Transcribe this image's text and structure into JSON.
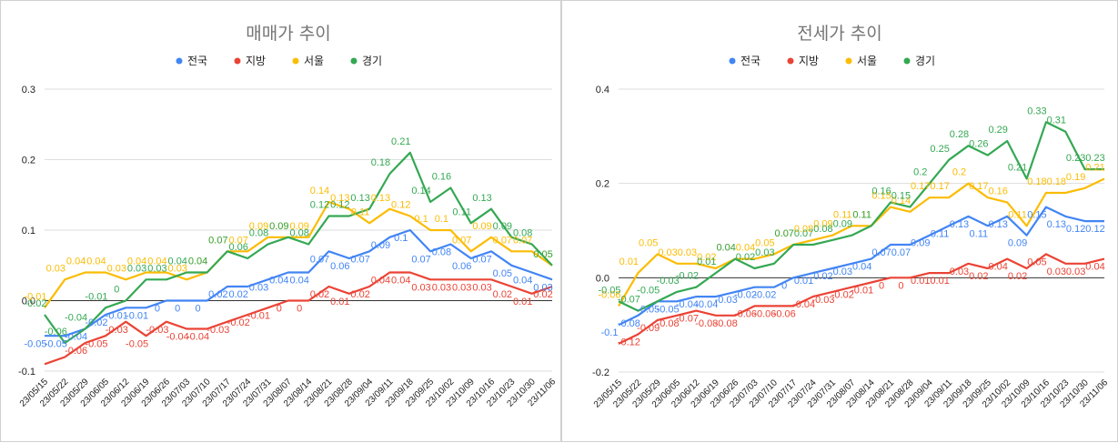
{
  "chart_data": [
    {
      "type": "line",
      "title": "매매가 추이",
      "legend_position": "top",
      "grid": true,
      "ylim": [
        -0.1,
        0.3
      ],
      "yticks": [
        "0.3",
        "0.2",
        "0.1",
        "0.0",
        "-0.1"
      ],
      "ytick_values": [
        0.3,
        0.2,
        0.1,
        0.0,
        -0.1
      ],
      "x": [
        "23/05/15",
        "23/05/22",
        "23/05/29",
        "23/06/05",
        "23/06/12",
        "23/06/19",
        "23/06/26",
        "23/07/03",
        "23/07/10",
        "23/07/17",
        "23/07/24",
        "23/07/31",
        "23/08/07",
        "23/08/14",
        "23/08/21",
        "23/08/28",
        "23/09/04",
        "23/09/11",
        "23/09/18",
        "23/09/25",
        "23/10/02",
        "23/10/09",
        "23/10/16",
        "23/10/23",
        "23/10/30",
        "23/11/06"
      ],
      "xtick_labels": [
        "23/05/15",
        "23/05/22",
        "23/05/29",
        "23/06/05",
        "23/06/12",
        "23/06/19",
        "23/06/26",
        "23/07/03",
        "23/07/10",
        "23/07/17",
        "23/07/24",
        "23/07/31",
        "23/08/07",
        "23/08/14",
        "23/08/21",
        "23/08/28",
        "23/09/04",
        "23/09/11",
        "23/09/18",
        "23/09/25",
        "23/10/02",
        "23/10/09",
        "23/10/16",
        "23/10/23",
        "23/10/30",
        "23/11/06"
      ],
      "series": [
        {
          "name": "전국",
          "color": "#4285f4",
          "values": [
            -0.05,
            -0.05,
            -0.04,
            -0.02,
            -0.01,
            -0.01,
            0,
            0,
            0,
            0.02,
            0.02,
            0.03,
            0.04,
            0.04,
            0.07,
            0.06,
            0.07,
            0.09,
            0.1,
            0.07,
            0.08,
            0.06,
            0.07,
            0.05,
            0.04,
            0.03
          ],
          "labels": [
            "-0.05",
            "-0.05",
            "-0.04",
            "-0.02",
            "-0.01",
            "-0.01",
            "0",
            "0",
            "0",
            "0.02",
            "0.02",
            "0.03",
            "0.04",
            "0.04",
            "0.07",
            "0.06",
            "0.07",
            "0.09",
            "0.1",
            "0.07",
            "0.08",
            "0.06",
            "0.07",
            "0.05",
            "0.04",
            "0.03"
          ]
        },
        {
          "name": "지방",
          "color": "#ea4335",
          "values": [
            -0.09,
            -0.08,
            -0.06,
            -0.05,
            -0.03,
            -0.05,
            -0.03,
            -0.04,
            -0.04,
            -0.03,
            -0.02,
            -0.01,
            0,
            0,
            0.02,
            0.01,
            0.02,
            0.04,
            0.04,
            0.03,
            0.03,
            0.03,
            0.03,
            0.02,
            0.01,
            0.02
          ],
          "labels": [
            "",
            "",
            "-0.06",
            "-0.05",
            "-0.03",
            "-0.05",
            "-0.03",
            "-0.04",
            "-0.04",
            "-0.03",
            "-0.02",
            "-0.01",
            "0",
            "0",
            "0.02",
            "0.01",
            "0.02",
            "0.04",
            "0.04",
            "0.03",
            "0.03",
            "0.03",
            "0.03",
            "0.02",
            "0.01",
            "0.02"
          ]
        },
        {
          "name": "서울",
          "color": "#fbbc04",
          "values": [
            -0.01,
            0.03,
            0.04,
            0.04,
            0.03,
            0.04,
            0.04,
            0.03,
            0.04,
            0.07,
            0.07,
            0.09,
            0.09,
            0.09,
            0.14,
            0.13,
            0.11,
            0.13,
            0.12,
            0.1,
            0.1,
            0.07,
            0.09,
            0.07,
            0.07,
            0.05
          ],
          "labels": [
            "-0.01",
            "0.03",
            "0.04",
            "0.04",
            "0.03",
            "0.04",
            "0.04",
            "0.03",
            "0.04",
            "0.07",
            "0.07",
            "0.09",
            "0.09",
            "0.09",
            "0.14",
            "0.13",
            "0.11",
            "0.13",
            "0.12",
            "0.1",
            "0.1",
            "0.07",
            "0.09",
            "0.07",
            "0.07",
            "0.05"
          ]
        },
        {
          "name": "경기",
          "color": "#34a853",
          "values": [
            -0.02,
            -0.06,
            -0.04,
            -0.01,
            0,
            0.03,
            0.03,
            0.04,
            0.04,
            0.07,
            0.06,
            0.08,
            0.09,
            0.08,
            0.12,
            0.12,
            0.13,
            0.18,
            0.21,
            0.14,
            0.16,
            0.11,
            0.13,
            0.09,
            0.08,
            0.05
          ],
          "labels": [
            "-0.02",
            "-0.06",
            "-0.04",
            "-0.01",
            "0",
            "0.03",
            "0.03",
            "0.04",
            "0.04",
            "0.07",
            "0.06",
            "0.08",
            "0.09",
            "0.08",
            "0.12",
            "0.12",
            "0.13",
            "0.18",
            "0.21",
            "0.14",
            "0.16",
            "0.11",
            "0.13",
            "0.09",
            "0.08",
            "0.05"
          ]
        }
      ]
    },
    {
      "type": "line",
      "title": "전세가 추이",
      "legend_position": "top",
      "grid": true,
      "ylim": [
        -0.2,
        0.4
      ],
      "yticks": [
        "0.4",
        "0.2",
        "0.0",
        "-0.2"
      ],
      "ytick_values": [
        0.4,
        0.2,
        0.0,
        -0.2
      ],
      "x": [
        "23/05/15",
        "23/05/22",
        "23/05/29",
        "23/06/05",
        "23/06/12",
        "23/06/19",
        "23/06/26",
        "23/07/03",
        "23/07/10",
        "23/07/17",
        "23/07/24",
        "23/07/31",
        "23/08/07",
        "23/08/14",
        "23/08/21",
        "23/08/28",
        "23/09/04",
        "23/09/11",
        "23/09/18",
        "23/09/25",
        "23/10/02",
        "23/10/09",
        "23/10/16",
        "23/10/23",
        "23/10/30",
        "23/11/06"
      ],
      "xtick_labels": [
        "23/05/15",
        "23/05/22",
        "23/05/29",
        "23/06/05",
        "23/06/12",
        "23/06/19",
        "23/06/26",
        "23/07/03",
        "23/07/10",
        "23/07/17",
        "23/07/24",
        "23/07/31",
        "23/08/07",
        "23/08/14",
        "23/08/21",
        "23/08/28",
        "23/09/04",
        "23/09/11",
        "23/09/18",
        "23/09/25",
        "23/10/02",
        "23/10/09",
        "23/10/16",
        "23/10/23",
        "23/10/30",
        "23/11/06"
      ],
      "series": [
        {
          "name": "전국",
          "color": "#4285f4",
          "values": [
            -0.1,
            -0.08,
            -0.05,
            -0.05,
            -0.04,
            -0.04,
            -0.03,
            -0.02,
            -0.02,
            0,
            0.01,
            0.02,
            0.03,
            0.04,
            0.07,
            0.07,
            0.09,
            0.11,
            0.13,
            0.11,
            0.13,
            0.09,
            0.15,
            0.13,
            0.12,
            0.12
          ],
          "labels": [
            "-0.1",
            "-0.08",
            "-0.05",
            "-0.05",
            "-0.04",
            "-0.04",
            "-0.03",
            "-0.02",
            "-0.02",
            "0",
            "0.01",
            "0.02",
            "0.03",
            "0.04",
            "0.07",
            "0.07",
            "0.09",
            "0.11",
            "0.13",
            "0.11",
            "0.13",
            "0.09",
            "0.15",
            "0.13",
            "0.12",
            "0.12"
          ]
        },
        {
          "name": "지방",
          "color": "#ea4335",
          "values": [
            -0.14,
            -0.12,
            -0.09,
            -0.08,
            -0.07,
            -0.08,
            -0.08,
            -0.06,
            -0.06,
            -0.06,
            -0.04,
            -0.03,
            -0.02,
            -0.01,
            0,
            0,
            0.01,
            0.01,
            0.03,
            0.02,
            0.04,
            0.02,
            0.05,
            0.03,
            0.03,
            0.04
          ],
          "labels": [
            "",
            "-0.12",
            "-0.09",
            "-0.08",
            "-0.07",
            "-0.08",
            "-0.08",
            "-0.06",
            "-0.06",
            "-0.06",
            "-0.04",
            "-0.03",
            "-0.02",
            "-0.01",
            "0",
            "0",
            "0.01",
            "0.01",
            "0.03",
            "0.02",
            "0.04",
            "0.02",
            "0.05",
            "0.03",
            "0.03",
            "0.04"
          ]
        },
        {
          "name": "서울",
          "color": "#fbbc04",
          "values": [
            -0.06,
            0.01,
            0.05,
            0.03,
            0.03,
            0.02,
            0.04,
            0.04,
            0.05,
            0.07,
            0.08,
            0.09,
            0.11,
            0.11,
            0.15,
            0.14,
            0.17,
            0.17,
            0.2,
            0.17,
            0.16,
            0.11,
            0.18,
            0.18,
            0.19,
            0.21
          ],
          "labels": [
            "-0.06",
            "0.01",
            "0.05",
            "0.03",
            "0.03",
            "0.02",
            "0.04",
            "0.04",
            "0.05",
            "0.07",
            "0.08",
            "0.09",
            "0.11",
            "0.11",
            "0.15",
            "0.14",
            "0.17",
            "0.17",
            "0.2",
            "0.17",
            "0.16",
            "0.11",
            "0.18",
            "0.18",
            "0.19",
            "0.21"
          ]
        },
        {
          "name": "경기",
          "color": "#34a853",
          "values": [
            -0.05,
            -0.07,
            -0.05,
            -0.03,
            -0.02,
            0.01,
            0.04,
            0.02,
            0.03,
            0.07,
            0.07,
            0.08,
            0.09,
            0.11,
            0.16,
            0.15,
            0.2,
            0.25,
            0.28,
            0.26,
            0.29,
            0.21,
            0.33,
            0.31,
            0.23,
            0.23
          ],
          "labels": [
            "-0.05",
            "-0.07",
            "-0.05",
            "-0.03",
            "-0.02",
            "0.01",
            "0.04",
            "0.02",
            "0.03",
            "0.07",
            "0.07",
            "0.08",
            "0.09",
            "0.11",
            "0.16",
            "0.15",
            "0.2",
            "0.25",
            "0.28",
            "0.26",
            "0.29",
            "0.21",
            "0.33",
            "0.31",
            "0.23",
            "0.23"
          ]
        }
      ]
    }
  ]
}
